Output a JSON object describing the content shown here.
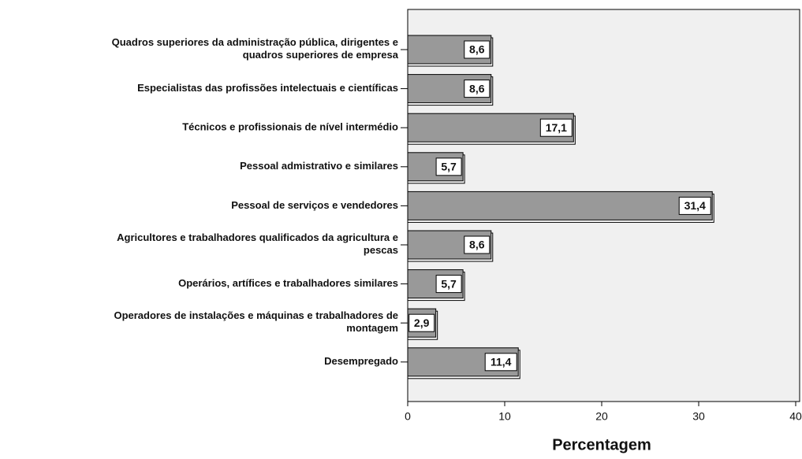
{
  "chart_data": {
    "type": "barh",
    "categories": [
      "Quadros superiores da administração pública, dirigentes e\nquadros superiores de empresa",
      "Especialistas das profissões intelectuais e científicas",
      "Técnicos e profissionais de nível intermédio",
      "Pessoal admistrativo e similares",
      "Pessoal de serviços e vendedores",
      "Agricultores e trabalhadores qualificados da agricultura e\npescas",
      "Operários, artífices e trabalhadores similares",
      "Operadores de instalações e máquinas e trabalhadores de\nmontagem",
      "Desempregado"
    ],
    "values": [
      8.6,
      8.6,
      17.1,
      5.7,
      31.4,
      8.6,
      5.7,
      2.9,
      11.4
    ],
    "value_labels": [
      "8,6",
      "8,6",
      "17,1",
      "5,7",
      "31,4",
      "8,6",
      "5,7",
      "2,9",
      "11,4"
    ],
    "color": "#999999",
    "xlabel": "Percentagem",
    "xlim": [
      0,
      40
    ],
    "xticks": [
      0,
      10,
      20,
      30,
      40
    ]
  }
}
